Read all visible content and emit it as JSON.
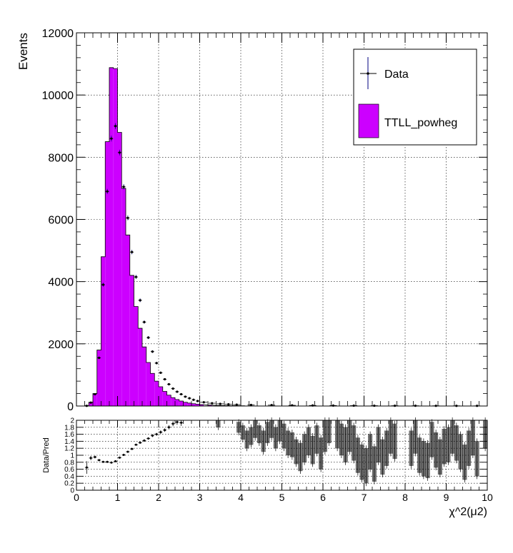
{
  "chart_data": [
    {
      "type": "bar",
      "panel": "main",
      "ylabel": "Events",
      "xlim": [
        0,
        10
      ],
      "ylim": [
        0,
        12000
      ],
      "y_ticks": [
        0,
        2000,
        4000,
        6000,
        8000,
        10000,
        12000
      ],
      "y_tick_labels": [
        "0",
        "2000",
        "4000",
        "6000",
        "8000",
        "10000",
        "12000"
      ],
      "grid": true,
      "legend_position": "top-right",
      "legend": [
        {
          "label": "Data",
          "style": "marker-errorbar",
          "color": "#000080"
        },
        {
          "label": "TTLL_powheg",
          "style": "fill",
          "color": "#cc00ff"
        }
      ],
      "bin_width": 0.1,
      "bin_low_edges": [
        0.2,
        0.3,
        0.4,
        0.5,
        0.6,
        0.7,
        0.8,
        0.9,
        1.0,
        1.1,
        1.2,
        1.3,
        1.4,
        1.5,
        1.6,
        1.7,
        1.8,
        1.9,
        2.0,
        2.1,
        2.2,
        2.3,
        2.4,
        2.5,
        2.6,
        2.7,
        2.8,
        2.9,
        3.0,
        3.2,
        3.4,
        3.6,
        3.8,
        4.0
      ],
      "series": [
        {
          "name": "TTLL_powheg",
          "values": [
            10,
            120,
            400,
            1800,
            4800,
            8500,
            10880,
            10850,
            8800,
            7000,
            5500,
            4200,
            3200,
            2500,
            1900,
            1400,
            1050,
            800,
            620,
            470,
            350,
            270,
            210,
            160,
            120,
            95,
            75,
            60,
            45,
            30,
            20,
            15,
            10,
            8
          ]
        },
        {
          "name": "Data",
          "x": [
            0.25,
            0.35,
            0.45,
            0.55,
            0.65,
            0.75,
            0.85,
            0.95,
            1.05,
            1.15,
            1.25,
            1.35,
            1.45,
            1.55,
            1.65,
            1.75,
            1.85,
            1.95,
            2.05,
            2.15,
            2.25,
            2.35,
            2.45,
            2.55,
            2.65,
            2.75,
            2.85,
            2.95,
            3.1,
            3.3,
            3.5,
            3.7,
            3.9,
            4.25,
            4.75,
            5.25,
            5.75,
            6.25,
            6.75,
            7.25,
            7.75,
            8.25,
            8.75,
            9.25,
            9.75
          ],
          "values": [
            5,
            110,
            380,
            1550,
            3900,
            6900,
            8600,
            9000,
            8150,
            7050,
            6050,
            4950,
            4150,
            3400,
            2700,
            2200,
            1750,
            1380,
            1070,
            860,
            700,
            560,
            460,
            380,
            300,
            250,
            200,
            160,
            120,
            90,
            70,
            55,
            45,
            35,
            28,
            22,
            18,
            15,
            12,
            10,
            9,
            8,
            7,
            6,
            5
          ]
        }
      ]
    },
    {
      "type": "scatter",
      "panel": "ratio",
      "xlabel": "χ^2(μ2)",
      "ylabel": "Data/Pred",
      "xlim": [
        0,
        10
      ],
      "ylim": [
        0,
        2
      ],
      "x_ticks": [
        0,
        1,
        2,
        3,
        4,
        5,
        6,
        7,
        8,
        9,
        10
      ],
      "x_tick_labels": [
        "0",
        "1",
        "2",
        "3",
        "4",
        "5",
        "6",
        "7",
        "8",
        "9",
        "10"
      ],
      "y_ticks": [
        0,
        0.2,
        0.4,
        0.6,
        0.8,
        1,
        1.2,
        1.4,
        1.6,
        1.8,
        2
      ],
      "y_tick_labels": [
        "0",
        "0.2",
        "0.4",
        "0.6",
        "0.8",
        "1",
        "1.2",
        "1.4",
        "1.6",
        "1.8",
        "2"
      ],
      "grid": true,
      "series": [
        {
          "name": "Data",
          "x": [
            0.25,
            0.35,
            0.45,
            0.55,
            0.65,
            0.75,
            0.85,
            0.95,
            1.05,
            1.15,
            1.25,
            1.35,
            1.45,
            1.55,
            1.65,
            1.75,
            1.85,
            1.95,
            2.05,
            2.15,
            2.25,
            2.35,
            2.45,
            2.55
          ],
          "values": [
            0.65,
            0.92,
            0.95,
            0.86,
            0.81,
            0.81,
            0.79,
            0.83,
            0.93,
            1.01,
            1.1,
            1.18,
            1.3,
            1.36,
            1.42,
            1.48,
            1.56,
            1.6,
            1.66,
            1.72,
            1.8,
            1.9,
            1.95,
            1.93
          ],
          "errors": [
            0.18,
            0.06,
            0.04,
            0.02,
            0.02,
            0.01,
            0.01,
            0.01,
            0.01,
            0.01,
            0.02,
            0.02,
            0.02,
            0.02,
            0.03,
            0.03,
            0.04,
            0.04,
            0.05,
            0.05,
            0.06,
            0.07,
            0.08,
            0.09
          ]
        },
        {
          "name": "Data",
          "style": "error-boxes",
          "x": [
            3.45,
            3.95,
            4.05,
            4.15,
            4.25,
            4.35,
            4.45,
            4.55,
            4.65,
            4.75,
            4.85,
            4.95,
            5.05,
            5.15,
            5.25,
            5.35,
            5.45,
            5.55,
            5.65,
            5.75,
            5.85,
            5.95,
            6.05,
            6.15,
            6.35,
            6.45,
            6.55,
            6.65,
            6.75,
            6.85,
            6.95,
            7.05,
            7.15,
            7.25,
            7.35,
            7.45,
            7.55,
            7.65,
            7.75,
            8.15,
            8.25,
            8.35,
            8.45,
            8.55,
            8.65,
            8.75,
            8.85,
            8.95,
            9.05,
            9.15,
            9.25,
            9.35,
            9.45,
            9.55,
            9.65,
            9.75,
            9.95
          ],
          "values": [
            1.95,
            1.8,
            1.65,
            1.45,
            1.55,
            1.75,
            1.6,
            1.4,
            1.65,
            1.8,
            1.5,
            1.7,
            1.55,
            1.35,
            1.3,
            1.1,
            0.95,
            1.2,
            1.4,
            1.15,
            1.45,
            1.05,
            1.55,
            1.8,
            1.65,
            1.45,
            1.3,
            1.6,
            1.35,
            1.0,
            0.8,
            0.7,
            1.1,
            0.75,
            1.3,
            0.95,
            1.2,
            1.55,
            1.4,
            1.2,
            1.55,
            1.0,
            0.9,
            0.85,
            1.45,
            1.15,
            0.95,
            1.25,
            1.3,
            1.55,
            1.35,
            1.1,
            0.8,
            1.2,
            1.5,
            0.9,
            1.7
          ],
          "errors": [
            0.15,
            0.15,
            0.2,
            0.25,
            0.25,
            0.25,
            0.25,
            0.3,
            0.3,
            0.3,
            0.3,
            0.3,
            0.35,
            0.35,
            0.35,
            0.35,
            0.4,
            0.4,
            0.4,
            0.4,
            0.4,
            0.45,
            0.45,
            0.45,
            0.45,
            0.45,
            0.5,
            0.5,
            0.5,
            0.5,
            0.5,
            0.5,
            0.5,
            0.5,
            0.5,
            0.5,
            0.5,
            0.5,
            0.5,
            0.5,
            0.5,
            0.5,
            0.5,
            0.5,
            0.5,
            0.5,
            0.5,
            0.5,
            0.5,
            0.5,
            0.5,
            0.5,
            0.5,
            0.5,
            0.5,
            0.5,
            0.5
          ]
        }
      ]
    }
  ]
}
